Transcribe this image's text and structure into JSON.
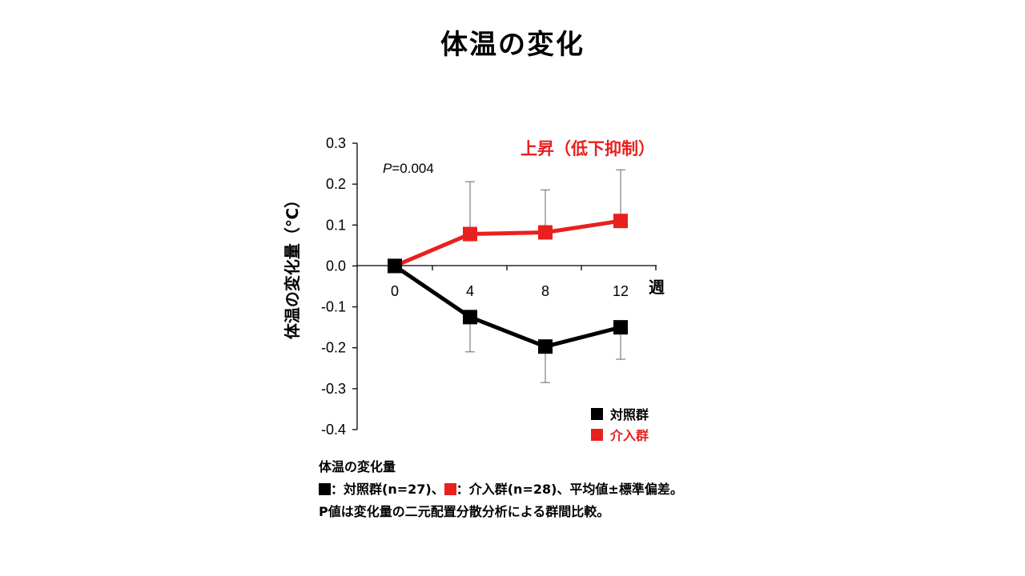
{
  "slide_title": "体温の変化",
  "colors": {
    "control": "#000000",
    "intervention": "#e8201e"
  },
  "chart_data": {
    "type": "line",
    "x": [
      0,
      4,
      8,
      12
    ],
    "xlabel": "週",
    "ylabel": "体温の変化量（℃）",
    "ylim": [
      -0.4,
      0.3
    ],
    "yticks": [
      "0.3",
      "0.2",
      "0.1",
      "0.0",
      "-0.1",
      "-0.2",
      "-0.3",
      "-0.4"
    ],
    "ytick_values": [
      0.3,
      0.2,
      0.1,
      0.0,
      -0.1,
      -0.2,
      -0.3,
      -0.4
    ],
    "xticks": [
      "0",
      "4",
      "8",
      "12"
    ],
    "grid": false,
    "legend_position": "bottom-right",
    "series": [
      {
        "name": "対照群",
        "color": "#000000",
        "values": [
          0.0,
          -0.125,
          -0.197,
          -0.15
        ],
        "error": [
          0,
          0.085,
          0.088,
          0.078
        ]
      },
      {
        "name": "介入群",
        "color": "#e8201e",
        "values": [
          0.0,
          0.078,
          0.082,
          0.11
        ],
        "error": [
          0,
          0.128,
          0.104,
          0.125
        ]
      }
    ],
    "annotations": {
      "p_prefix": "P",
      "p_suffix": "=0.004",
      "effect_label": "上昇（低下抑制）"
    }
  },
  "notes": {
    "line1": "体温の変化量",
    "line2_sep": "：",
    "line2_control": "対照群(n=27)、",
    "line2_intervention": "介入群(n=28)、平均値±標準偏差。",
    "line3": "P値は変化量の二元配置分散分析による群間比較。"
  }
}
